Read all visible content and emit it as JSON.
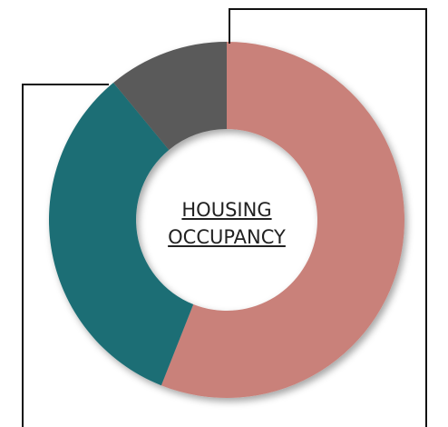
{
  "chart_data": {
    "type": "donut",
    "title": "HOUSING OCCUPANCY",
    "values": [
      56,
      33,
      11
    ],
    "colors": [
      "#c9817a",
      "#1b6e74",
      "#5a5a5a"
    ]
  }
}
